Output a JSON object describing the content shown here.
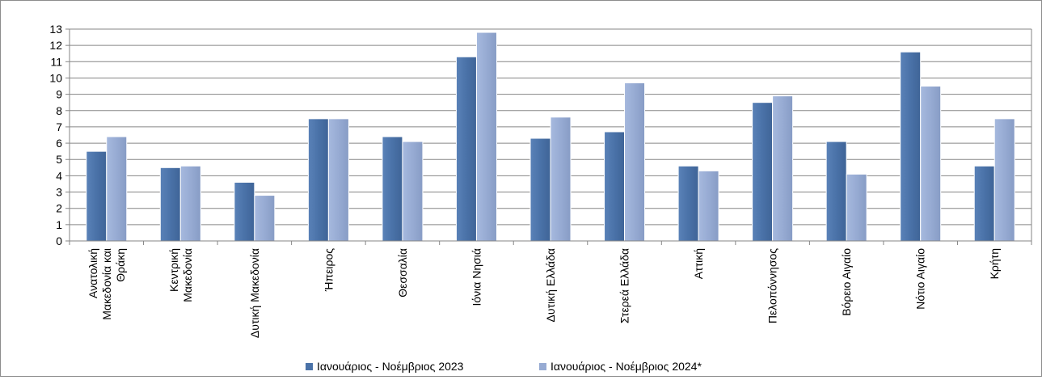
{
  "chart_data": {
    "type": "bar",
    "categories": [
      [
        "Ανατολική",
        "Μακεδονία και",
        "Θράκη"
      ],
      [
        "Κεντρική",
        "Μακεδονία"
      ],
      [
        "Δυτική Μακεδονία"
      ],
      [
        "Ήπειρος"
      ],
      [
        "Θεσσαλία"
      ],
      [
        "Ιόνια Νησιά"
      ],
      [
        "Δυτική Ελλάδα"
      ],
      [
        "Στερεά Ελλάδα"
      ],
      [
        "Αττική"
      ],
      [
        "Πελοπόννησος"
      ],
      [
        "Βόρειο Αιγαίο"
      ],
      [
        "Νότιο Αιγαίο"
      ],
      [
        "Κρήτη"
      ]
    ],
    "series": [
      {
        "name": "Ιανουάριος - Νοέμβριος 2023",
        "color": "#4a72a8",
        "values": [
          5.5,
          4.5,
          3.6,
          7.5,
          6.4,
          11.3,
          6.3,
          6.7,
          4.6,
          8.5,
          6.1,
          11.6,
          4.6
        ]
      },
      {
        "name": "Ιανουάριος - Νοέμβριος 2024*",
        "color": "#97abd3",
        "values": [
          6.4,
          4.6,
          2.8,
          7.5,
          6.1,
          12.8,
          7.6,
          9.7,
          4.3,
          8.9,
          4.1,
          9.5,
          7.5
        ]
      }
    ],
    "ylim": [
      0,
      13
    ],
    "yticks": [
      0,
      1,
      2,
      3,
      4,
      5,
      6,
      7,
      8,
      9,
      10,
      11,
      12,
      13
    ],
    "grid": true,
    "legend": "bottom"
  }
}
